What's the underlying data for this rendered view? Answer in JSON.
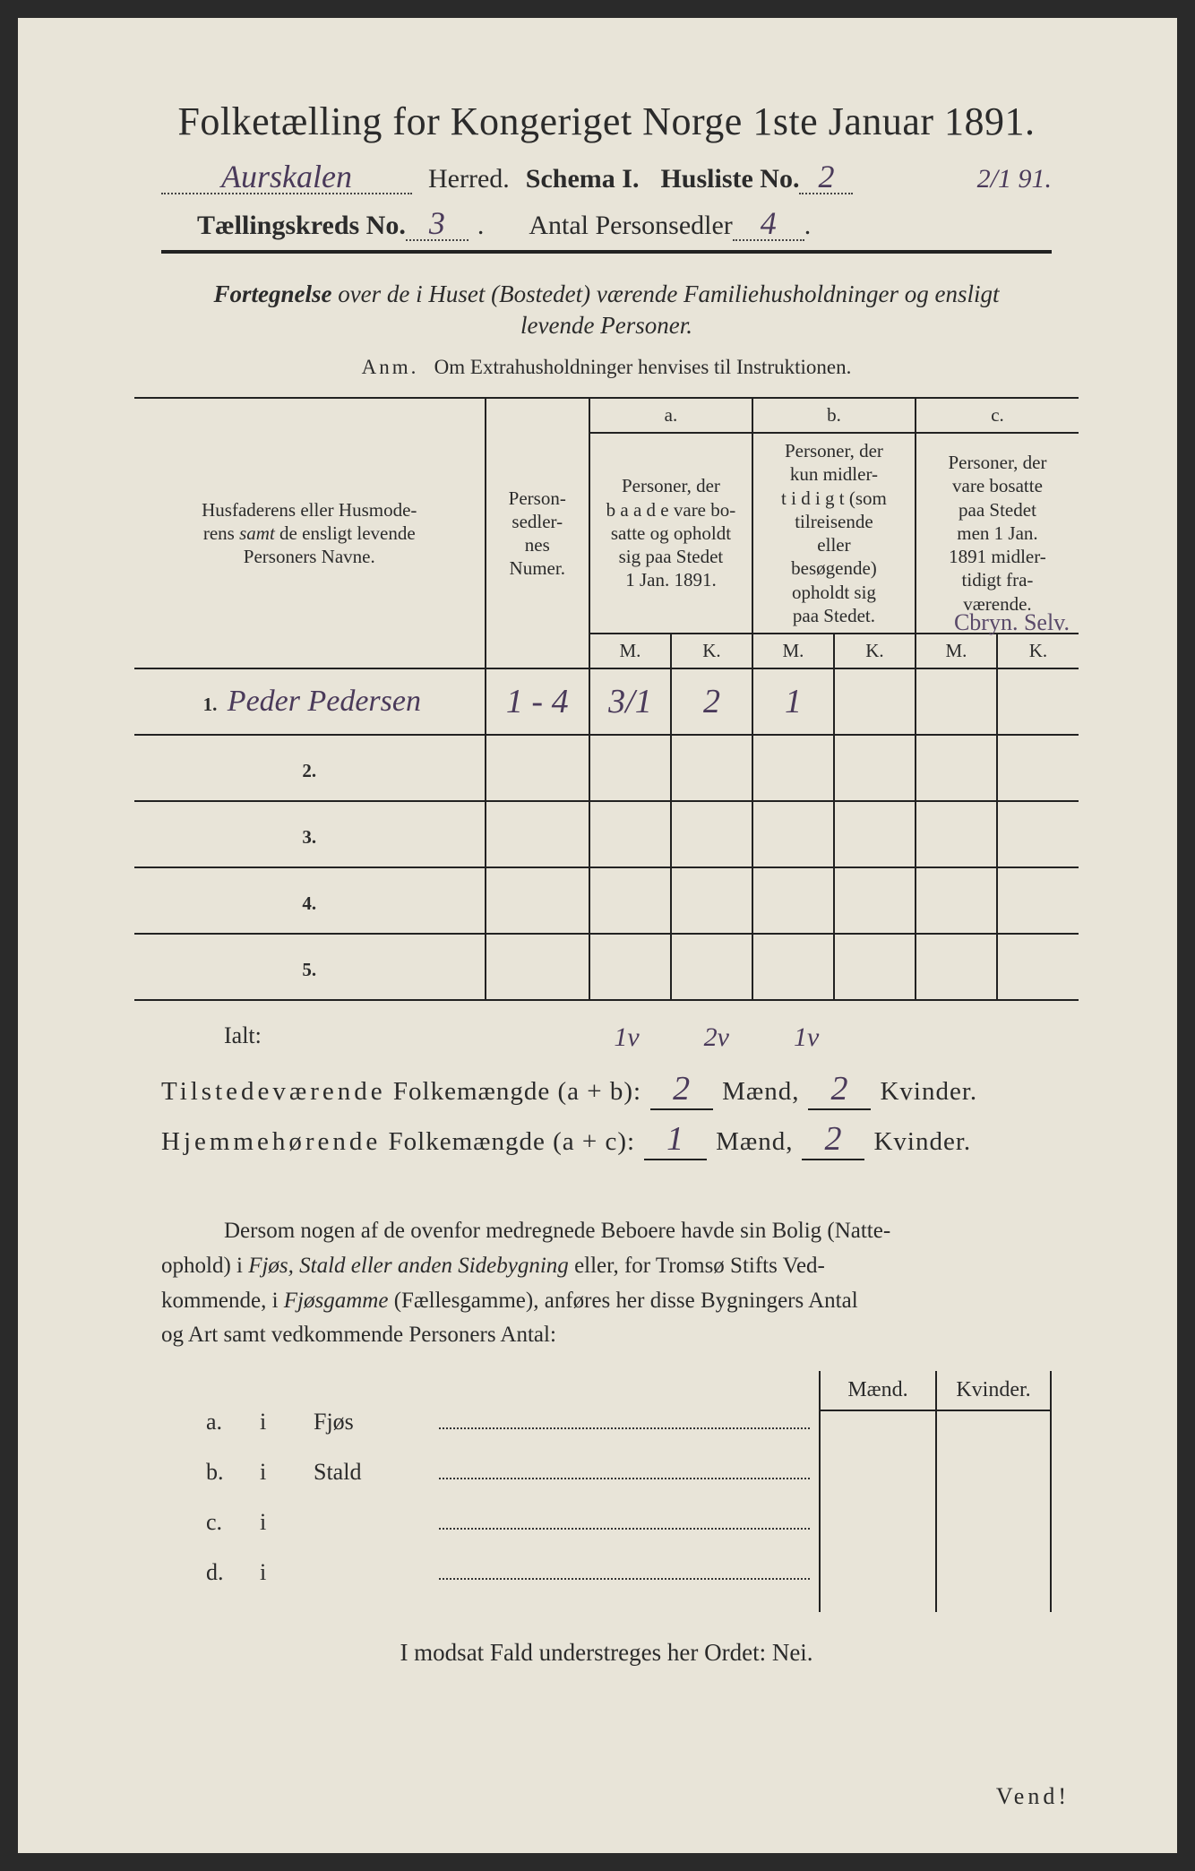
{
  "title": "Folketælling for Kongeriget Norge 1ste Januar 1891.",
  "header": {
    "herred_value": "Aurskalen",
    "herred_label": "Herred.",
    "schema_label": "Schema I.",
    "husliste_label": "Husliste No.",
    "husliste_no": "2",
    "date_annot": "2/1 91.",
    "kreds_label": "Tællingskreds No.",
    "kreds_no": "3",
    "antal_label": "Antal Personsedler",
    "antal_val": "4"
  },
  "subtitle_lead": "Fortegnelse over de i Huset (Bostedet) værende Familiehusholdninger og ensligt",
  "subtitle_line2": "levende Personer.",
  "anm_label": "Anm.",
  "anm_text": "Om Extrahusholdninger henvises til Instruktionen.",
  "table": {
    "col_name": "Husfaderens eller Husmoderens samt de ensligt levende Personers Navne.",
    "col_num": "Personsedlernes Numer.",
    "col_a_top": "a.",
    "col_a": "Personer, der baade vare bosatte og opholdt sig paa Stedet 1 Jan. 1891.",
    "col_b_top": "b.",
    "col_b": "Personer, der kun midlertidigt (som tilreisende eller besøgende) opholdt sig paa Stedet.",
    "col_c_top": "c.",
    "col_c": "Personer, der vare bosatte paa Stedet men 1 Jan. 1891 midlertidigt fraværende.",
    "m": "M.",
    "k": "K.",
    "rows": [
      {
        "n": "1.",
        "name": "Peder Pedersen",
        "num": "1 - 4",
        "aM": "3/1",
        "aK": "2",
        "bM": "1",
        "bK": "",
        "cM": "",
        "cK": ""
      },
      {
        "n": "2.",
        "name": "",
        "num": "",
        "aM": "",
        "aK": "",
        "bM": "",
        "bK": "",
        "cM": "",
        "cK": ""
      },
      {
        "n": "3.",
        "name": "",
        "num": "",
        "aM": "",
        "aK": "",
        "bM": "",
        "bK": "",
        "cM": "",
        "cK": ""
      },
      {
        "n": "4.",
        "name": "",
        "num": "",
        "aM": "",
        "aK": "",
        "bM": "",
        "bK": "",
        "cM": "",
        "cK": ""
      },
      {
        "n": "5.",
        "name": "",
        "num": "",
        "aM": "",
        "aK": "",
        "bM": "",
        "bK": "",
        "cM": "",
        "cK": ""
      }
    ],
    "corner_annot": "Cbryn. Selv."
  },
  "ialt": {
    "label": "Ialt:",
    "v1": "1v",
    "v2": "2v",
    "v3": "1v"
  },
  "totals": {
    "line1_label": "Tilstedeværende Folkemængde (a + b):",
    "line2_label": "Hjemmehørende Folkemængde (a + c):",
    "maend": "Mænd,",
    "kvinder": "Kvinder.",
    "t1m": "2",
    "t1k": "2",
    "t2m": "1",
    "t2k": "2"
  },
  "para": "Dersom nogen af de ovenfor medregnede Beboere havde sin Bolig (Natteophold) i Fjøs, Stald eller anden Sidebygning eller, for Tromsø Stifts Vedkommende, i Fjøsgamme (Fællesgamme), anføres her disse Bygningers Antal og Art samt vedkommende Personers Antal:",
  "lower": {
    "hdr_m": "Mænd.",
    "hdr_k": "Kvinder.",
    "rows": [
      {
        "a": "a.",
        "i": "i",
        "name": "Fjøs"
      },
      {
        "a": "b.",
        "i": "i",
        "name": "Stald"
      },
      {
        "a": "c.",
        "i": "i",
        "name": ""
      },
      {
        "a": "d.",
        "i": "i",
        "name": ""
      }
    ]
  },
  "bottom": "I modsat Fald understreges her Ordet: Nei.",
  "vend": "Vend!",
  "colors": {
    "paper": "#e8e4d8",
    "ink": "#2b2b2b",
    "handwriting": "#4a3a5a"
  }
}
